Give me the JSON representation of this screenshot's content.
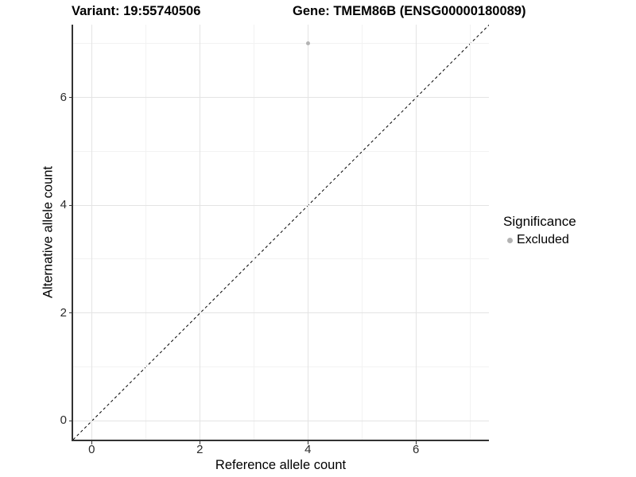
{
  "header": {
    "title_left": "Variant: 19:55740506",
    "title_right": "Gene: TMEM86B (ENSG00000180089)"
  },
  "axes": {
    "xlabel": "Reference allele count",
    "ylabel": "Alternative allele count"
  },
  "legend": {
    "title": "Significance",
    "position": "right",
    "entries": [
      {
        "label": "Excluded",
        "color": "#b3b3b3",
        "marker": "circle"
      }
    ]
  },
  "chart_data": {
    "type": "scatter",
    "title_left": "Variant: 19:55740506",
    "title_right": "Gene: TMEM86B (ENSG00000180089)",
    "xlabel": "Reference allele count",
    "ylabel": "Alternative allele count",
    "xlim": [
      -0.35,
      7.35
    ],
    "ylim": [
      -0.35,
      7.35
    ],
    "x_major_ticks": [
      0,
      2,
      4,
      6
    ],
    "y_major_ticks": [
      0,
      2,
      4,
      6
    ],
    "x_minor_ticks": [
      1,
      3,
      5,
      7
    ],
    "y_minor_ticks": [
      1,
      3,
      5,
      7
    ],
    "grid": "major+minor",
    "legend_title": "Significance",
    "series": [
      {
        "name": "Excluded",
        "color": "#b3b3b3",
        "points": [
          {
            "x": 4,
            "y": 7
          }
        ]
      }
    ],
    "reference_line": {
      "style": "dashed",
      "slope": 1,
      "intercept": 0,
      "color": "#000000"
    }
  },
  "colors": {
    "background": "#ffffff",
    "axis_line": "#333333",
    "tick_label": "#2b2b2b",
    "grid_major": "#e4e4e4",
    "grid_minor": "#f2f2f2",
    "point": "#b3b3b3",
    "title": "#000000"
  }
}
